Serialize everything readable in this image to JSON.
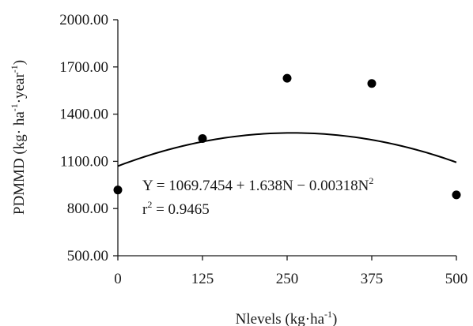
{
  "chart_data": {
    "type": "scatter",
    "x_axis": {
      "min": 0,
      "max": 500,
      "ticks": [
        0,
        125,
        250,
        375,
        500
      ],
      "tick_labels": [
        "0",
        "125",
        "250",
        "375",
        "500"
      ],
      "label": "Nlevels (kg·ha",
      "label_sup": "-1",
      "label_tail": ")"
    },
    "y_axis": {
      "min": 500,
      "max": 2000,
      "ticks": [
        500,
        800,
        1100,
        1400,
        1700,
        2000
      ],
      "tick_labels": [
        "500.00",
        "800.00",
        "1100.00",
        "1400.00",
        "1700.00",
        "2000.00"
      ],
      "label_parts": [
        {
          "t": "PDMMD (kg· ha",
          "sup": false
        },
        {
          "t": "-1",
          "sup": true
        },
        {
          "t": "·year",
          "sup": false
        },
        {
          "t": "-1",
          "sup": true
        },
        {
          "t": ")",
          "sup": false
        }
      ]
    },
    "points": [
      {
        "x": 0,
        "y": 918
      },
      {
        "x": 125,
        "y": 1245
      },
      {
        "x": 250,
        "y": 1628
      },
      {
        "x": 375,
        "y": 1595
      },
      {
        "x": 500,
        "y": 887
      }
    ],
    "fit": {
      "a": 1069.7454,
      "b": 1.638,
      "c": -0.00318
    },
    "equation": {
      "main": "Y = 1069.7454 + 1.638N − 0.00318N",
      "sup": "2"
    },
    "r2": {
      "prefix": "r",
      "sup": "2",
      "rest": " = 0.9465"
    },
    "colors": {
      "axis": "#1a1a1a",
      "points": "#000000",
      "curve": "#000000"
    },
    "grid": false,
    "legend": "none"
  }
}
